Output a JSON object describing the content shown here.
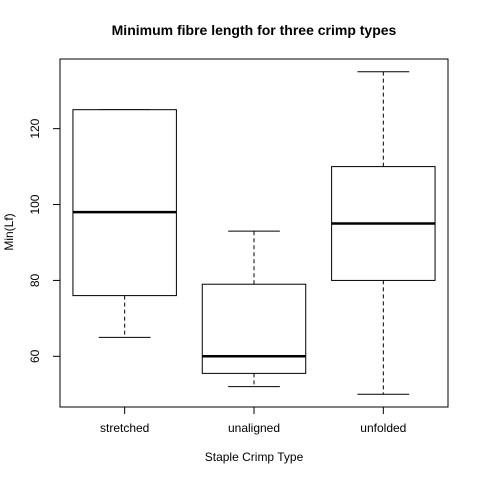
{
  "chart_data": {
    "type": "boxplot",
    "title": "Minimum fibre length for three crimp types",
    "xlabel": "Staple Crimp Type",
    "ylabel": "Min(Lf)",
    "categories": [
      "stretched",
      "unaligned",
      "unfolded"
    ],
    "boxes": [
      {
        "name": "stretched",
        "whisker_low": 65,
        "q1": 76,
        "median": 98,
        "q3": 125,
        "whisker_high": 125
      },
      {
        "name": "unaligned",
        "whisker_low": 52,
        "q1": 55.5,
        "median": 60,
        "q3": 79,
        "whisker_high": 93
      },
      {
        "name": "unfolded",
        "whisker_low": 50,
        "q1": 80,
        "median": 95,
        "q3": 110,
        "whisker_high": 135
      }
    ],
    "yticks": [
      60,
      80,
      100,
      120
    ],
    "ytick_labels": [
      "60",
      "80",
      "100",
      "120"
    ],
    "ylim": [
      46.64,
      138.36
    ],
    "grid": false,
    "colors": {
      "box_fill": "#ffffff",
      "stroke": "#000000",
      "background": "#ffffff"
    }
  }
}
